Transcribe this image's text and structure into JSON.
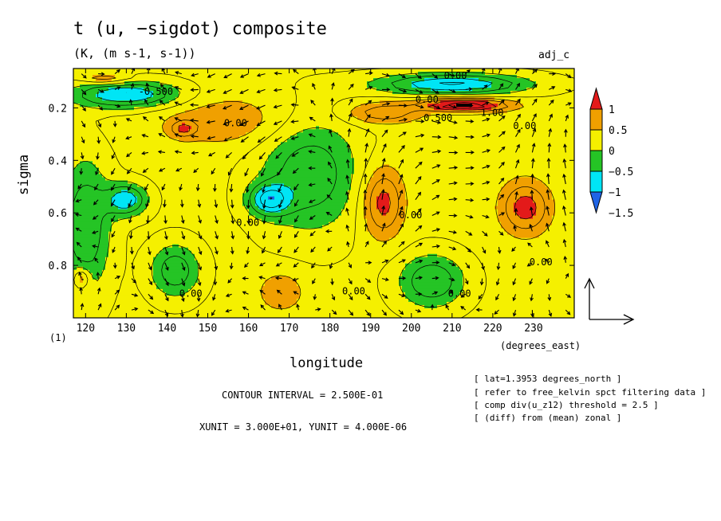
{
  "title": "t (u, −sigdot) composite",
  "subtitle": "(K, (m s-1, s-1))",
  "tag": "adj_c",
  "contour_interval": "CONTOUR INTERVAL = 2.500E-01",
  "units": "XUNIT = 3.000E+01, YUNIT = 4.000E-06",
  "notes": [
    "[ lat=1.3953 degrees_north ]",
    "[ refer to free_kelvin spct filtering data ]",
    "[ comp div(u_z12) threshold = 2.5 ]",
    "[ (diff) from (mean) zonal ]"
  ],
  "chart_data": {
    "type": "heatmap",
    "title": "t (u, −sigdot) composite",
    "subtitle": "(K, (m s-1, s-1))",
    "xlabel": "longitude",
    "xunit_label": "(degrees_east)",
    "ylabel": "sigma",
    "yunit_label": "(1)",
    "xlim": [
      117,
      240
    ],
    "ylim": [
      0.05,
      1.0
    ],
    "y_inverted": true,
    "x_ticks": [
      120,
      130,
      140,
      150,
      160,
      170,
      180,
      190,
      200,
      210,
      220,
      230
    ],
    "y_ticks": [
      0.2,
      0.4,
      0.6,
      0.8
    ],
    "colorbar": {
      "labels": [
        "1",
        "0.5",
        "0",
        "−0.5",
        "−1",
        "−1.5"
      ],
      "levels": [
        -1.5,
        -1.0,
        -0.5,
        0.0,
        0.5,
        1.0
      ],
      "colors": [
        "#1f64e6",
        "#00e5f5",
        "#25c425",
        "#f5f000",
        "#f0a000",
        "#e31a1a"
      ]
    },
    "contour_labels": [
      {
        "text": "0.00",
        "x": 208,
        "y": 0.09
      },
      {
        "text": "-0.500",
        "x": 133,
        "y": 0.15
      },
      {
        "text": "0.00",
        "x": 201,
        "y": 0.18
      },
      {
        "text": "0.500",
        "x": 203,
        "y": 0.25
      },
      {
        "text": "1.00",
        "x": 217,
        "y": 0.23
      },
      {
        "text": "0.00",
        "x": 154,
        "y": 0.27
      },
      {
        "text": "0.00",
        "x": 225,
        "y": 0.28
      },
      {
        "text": "0.00",
        "x": 157,
        "y": 0.65
      },
      {
        "text": "0.00",
        "x": 197,
        "y": 0.62
      },
      {
        "text": "0.00",
        "x": 229,
        "y": 0.8
      },
      {
        "text": "0.00",
        "x": 143,
        "y": 0.92
      },
      {
        "text": "0.00",
        "x": 183,
        "y": 0.91
      },
      {
        "text": "0.00",
        "x": 209,
        "y": 0.92
      }
    ],
    "centers": [
      {
        "x": 130,
        "y": 0.15,
        "v": -1.1,
        "sx": 13,
        "sy": 0.05
      },
      {
        "x": 130,
        "y": 0.55,
        "v": -1.0,
        "sx": 5,
        "sy": 0.06
      },
      {
        "x": 165,
        "y": 0.55,
        "v": -1.0,
        "sx": 5,
        "sy": 0.06
      },
      {
        "x": 175,
        "y": 0.45,
        "v": -0.75,
        "sx": 12,
        "sy": 0.22
      },
      {
        "x": 120,
        "y": 0.65,
        "v": -0.8,
        "sx": 6,
        "sy": 0.25
      },
      {
        "x": 142,
        "y": 0.82,
        "v": -0.75,
        "sx": 6,
        "sy": 0.1
      },
      {
        "x": 210,
        "y": 0.11,
        "v": -1.1,
        "sx": 18,
        "sy": 0.04
      },
      {
        "x": 205,
        "y": 0.86,
        "v": -0.8,
        "sx": 8,
        "sy": 0.1
      },
      {
        "x": 193,
        "y": 0.56,
        "v": 0.85,
        "sx": 5,
        "sy": 0.13
      },
      {
        "x": 228,
        "y": 0.58,
        "v": 0.85,
        "sx": 6,
        "sy": 0.1
      },
      {
        "x": 213,
        "y": 0.19,
        "v": 1.25,
        "sx": 11,
        "sy": 0.025
      },
      {
        "x": 193,
        "y": 0.22,
        "v": 0.65,
        "sx": 9,
        "sy": 0.04
      },
      {
        "x": 144,
        "y": 0.28,
        "v": 0.6,
        "sx": 3,
        "sy": 0.03
      },
      {
        "x": 155,
        "y": 0.25,
        "v": 0.4,
        "sx": 18,
        "sy": 0.1
      },
      {
        "x": 119,
        "y": 0.85,
        "v": 0.65,
        "sx": 2,
        "sy": 0.04
      },
      {
        "x": 168,
        "y": 0.9,
        "v": 0.4,
        "sx": 6,
        "sy": 0.08
      },
      {
        "x": 125,
        "y": 0.09,
        "v": 0.5,
        "sx": 6,
        "sy": 0.02
      }
    ],
    "wind": [
      {
        "x": 165,
        "y": 0.25,
        "u": -1,
        "w": 0
      },
      {
        "x": 200,
        "y": 0.25,
        "u": 1,
        "w": 0
      },
      {
        "x": 193,
        "y": 0.55,
        "u": 0,
        "w": 1
      },
      {
        "x": 228,
        "y": 0.55,
        "u": 0,
        "w": 1
      },
      {
        "x": 155,
        "y": 0.6,
        "u": 0,
        "w": -1
      },
      {
        "x": 210,
        "y": 0.7,
        "u": 0.3,
        "w": -0.8
      }
    ],
    "reference_vector": {
      "x_label": "XUNIT",
      "y_label": "YUNIT"
    }
  }
}
